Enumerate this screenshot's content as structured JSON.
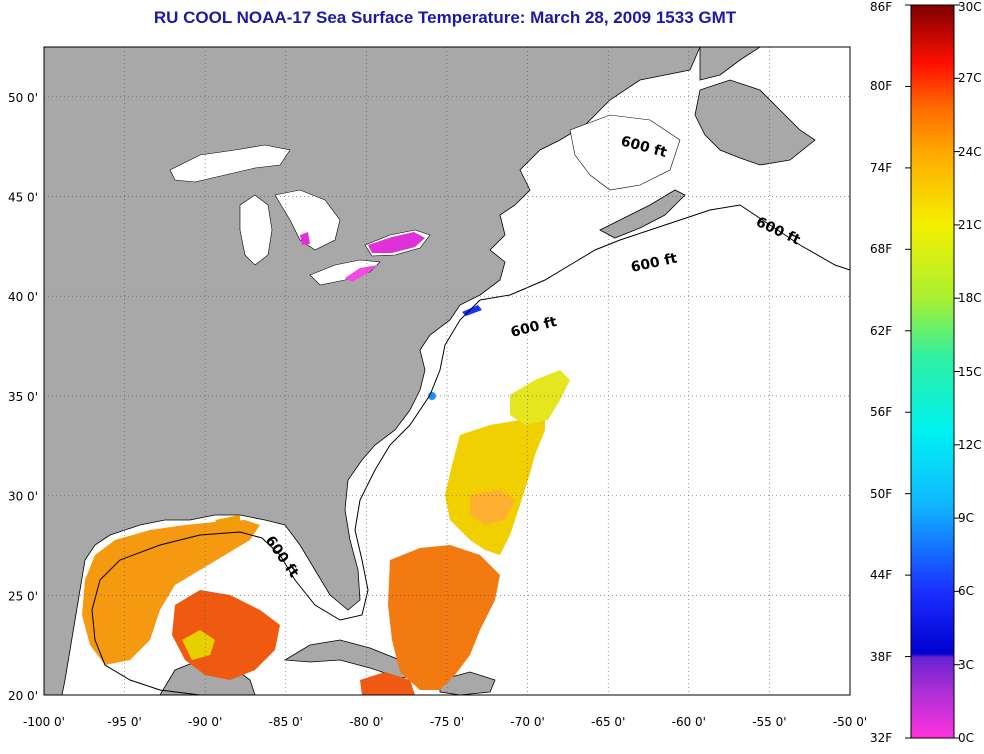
{
  "title": "RU COOL  NOAA-17  Sea Surface Temperature:  March 28, 2009 1533 GMT",
  "map": {
    "lon_range": [
      -100,
      -50
    ],
    "lat_range": [
      20,
      52.5
    ],
    "lon_ticks": [
      "-100 0'",
      "-95 0'",
      "-90 0'",
      "-85 0'",
      "-80 0'",
      "-75 0'",
      "-70 0'",
      "-65 0'",
      "-60 0'",
      "-55 0'",
      "-50 0'"
    ],
    "lat_ticks": [
      "20 0'",
      "25 0'",
      "30 0'",
      "35 0'",
      "40 0'",
      "45 0'",
      "50 0'"
    ],
    "land_color": "#a8a8a8",
    "contour_label": "600 ft"
  },
  "colorbar": {
    "fahrenheit": [
      "86F",
      "80F",
      "74F",
      "68F",
      "62F",
      "56F",
      "50F",
      "44F",
      "38F",
      "32F"
    ],
    "celsius": [
      "30C",
      "27C",
      "24C",
      "21C",
      "18C",
      "15C",
      "12C",
      "9C",
      "6C",
      "3C",
      "0C"
    ]
  }
}
